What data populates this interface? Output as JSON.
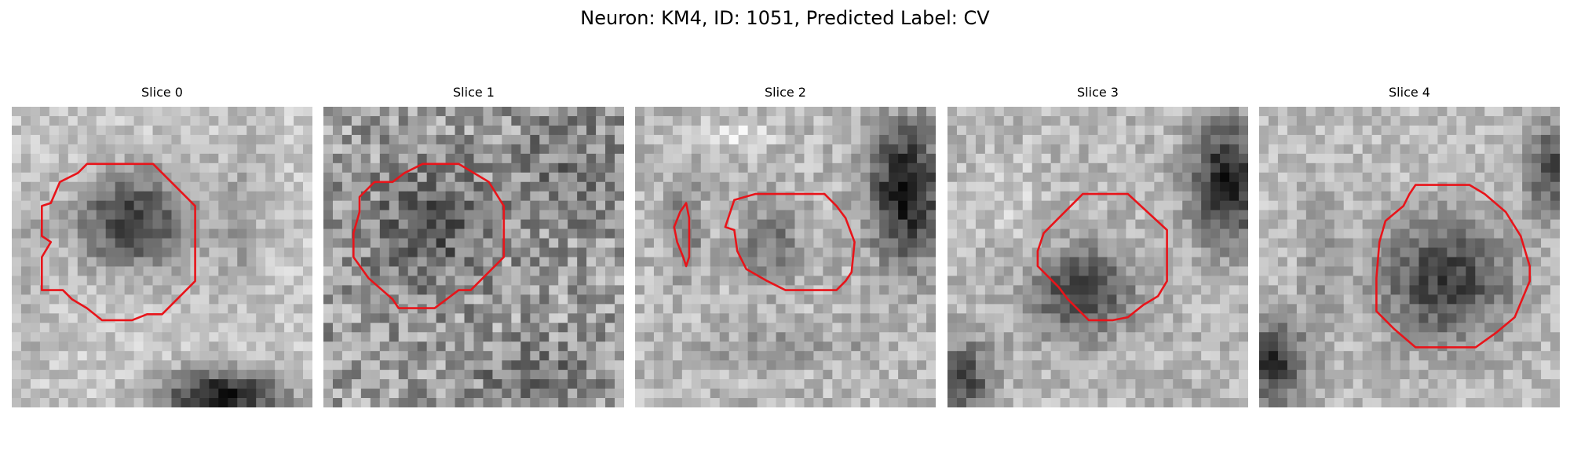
{
  "figure": {
    "title": "Neuron: KM4, ID: 1051, Predicted Label: CV"
  },
  "panels": [
    {
      "title": "Slice 0"
    },
    {
      "title": "Slice 1"
    },
    {
      "title": "Slice 2"
    },
    {
      "title": "Slice 3"
    },
    {
      "title": "Slice 4"
    }
  ],
  "colors": {
    "background": "#ffffff",
    "contour": "#e8141a",
    "colormap": "grayscale"
  }
}
